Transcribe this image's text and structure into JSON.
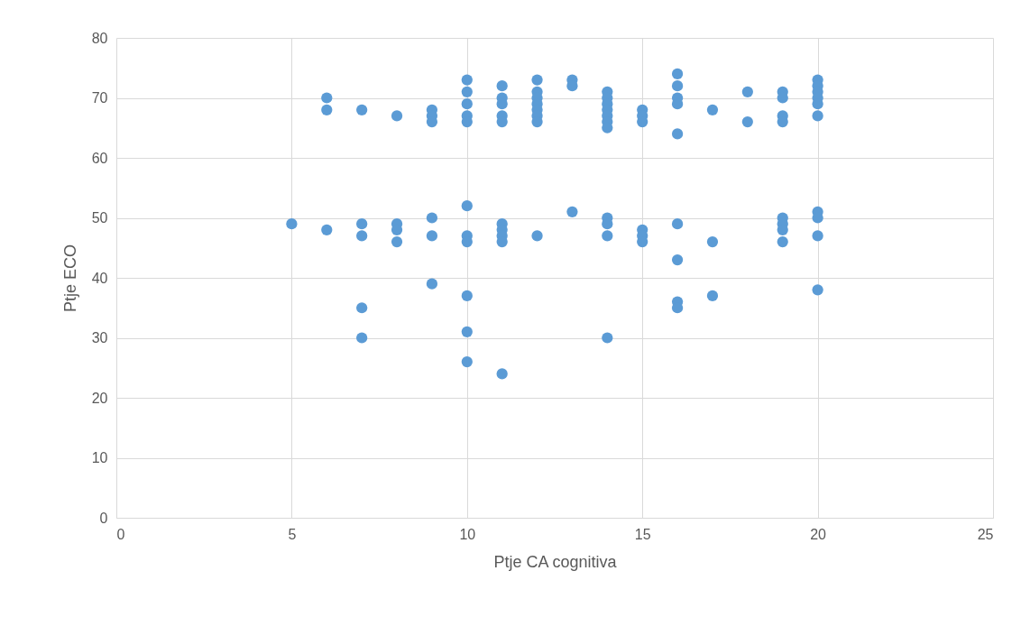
{
  "chart_data": {
    "type": "scatter",
    "xlabel": "Ptje CA cognitiva",
    "ylabel": "Ptje ECO",
    "x": [
      6,
      6,
      7,
      8,
      9,
      9,
      9,
      10,
      10,
      10,
      10,
      10,
      11,
      11,
      11,
      11,
      11,
      12,
      12,
      12,
      12,
      12,
      12,
      12,
      13,
      13,
      14,
      14,
      14,
      14,
      14,
      14,
      14,
      15,
      15,
      15,
      16,
      16,
      16,
      16,
      16,
      17,
      18,
      18,
      19,
      19,
      19,
      19,
      20,
      20,
      20,
      20,
      20,
      20,
      5,
      6,
      7,
      7,
      7,
      7,
      8,
      8,
      8,
      9,
      9,
      9,
      10,
      10,
      10,
      10,
      10,
      10,
      11,
      11,
      11,
      11,
      11,
      12,
      13,
      14,
      14,
      14,
      14,
      15,
      15,
      15,
      16,
      16,
      16,
      16,
      17,
      17,
      19,
      19,
      19,
      19,
      20,
      20,
      20,
      20
    ],
    "series": [
      {
        "color": "#5b9bd5",
        "values": [
          70,
          68,
          68,
          67,
          68,
          67,
          66,
          73,
          71,
          69,
          67,
          66,
          72,
          70,
          69,
          67,
          66,
          73,
          71,
          70,
          69,
          68,
          67,
          66,
          73,
          72,
          71,
          70,
          69,
          68,
          67,
          66,
          65,
          68,
          67,
          66,
          74,
          72,
          70,
          69,
          64,
          68,
          71,
          66,
          71,
          70,
          67,
          66,
          73,
          72,
          71,
          70,
          69,
          67,
          49,
          48,
          49,
          47,
          35,
          30,
          49,
          48,
          46,
          50,
          47,
          39,
          52,
          47,
          46,
          37,
          31,
          26,
          49,
          48,
          47,
          46,
          24,
          47,
          51,
          50,
          49,
          47,
          30,
          48,
          47,
          46,
          49,
          43,
          36,
          35,
          46,
          37,
          50,
          49,
          48,
          46,
          51,
          50,
          47,
          38
        ]
      }
    ],
    "xlim": [
      0,
      25
    ],
    "xticks": [
      0,
      5,
      10,
      15,
      20,
      25
    ],
    "ylim": [
      0,
      80
    ],
    "yticks": [
      0,
      10,
      20,
      30,
      40,
      50,
      60,
      70,
      80
    ],
    "grid": true,
    "marker": "circle"
  }
}
